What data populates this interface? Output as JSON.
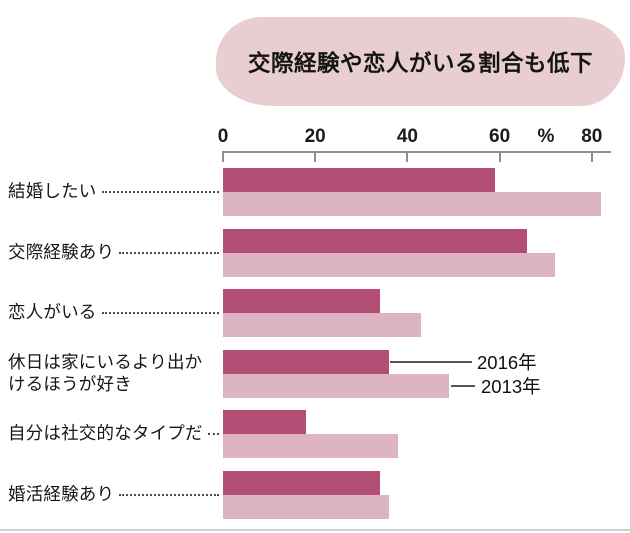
{
  "title": "交際経験や恋人がいる割合も低下",
  "axis": {
    "ticks": [
      0,
      20,
      40,
      60,
      80
    ],
    "unit_label": "%"
  },
  "legend": {
    "series1": "2016年",
    "series2": "2013年"
  },
  "chart_data": {
    "type": "bar",
    "orientation": "horizontal",
    "title": "交際経験や恋人がいる割合も低下",
    "categories": [
      "結婚したい",
      "交際経験あり",
      "恋人がいる",
      "休日は家にいるより出かけるほうが好き",
      "自分は社交的なタイプだ",
      "婚活経験あり"
    ],
    "series": [
      {
        "name": "2016年",
        "values": [
          59,
          66,
          34,
          36,
          18,
          34
        ]
      },
      {
        "name": "2013年",
        "values": [
          82,
          72,
          43,
          49,
          38,
          36
        ]
      }
    ],
    "xlim": [
      0,
      84
    ],
    "x_ticks": [
      0,
      20,
      40,
      60,
      80
    ],
    "unit": "%",
    "grid": false,
    "legend_position": "inline-callout-right-of-4th-group"
  },
  "colors": {
    "bar_2016": "#b24e76",
    "bar_2013": "#ddb4c1",
    "title_bg": "#e9ced1",
    "axis": "#8f8f8f",
    "bottom_rule": "#cbd0d3"
  }
}
